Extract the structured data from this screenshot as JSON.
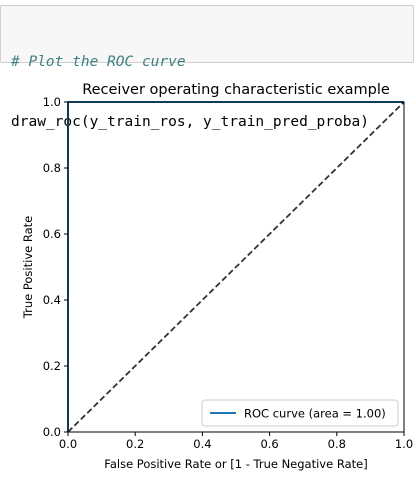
{
  "code_cell": {
    "comment": "# Plot the ROC curve",
    "code": "draw_roc(y_train_ros, y_train_pred_proba)"
  },
  "chart_data": {
    "type": "line",
    "title": "Receiver operating characteristic example",
    "xlabel": "False Positive Rate or [1 - True Negative Rate]",
    "ylabel": "True Positive Rate",
    "xlim": [
      0,
      1
    ],
    "ylim": [
      0,
      1
    ],
    "x_ticks": [
      "0.0",
      "0.2",
      "0.4",
      "0.6",
      "0.8",
      "1.0"
    ],
    "y_ticks": [
      "0.0",
      "0.2",
      "0.4",
      "0.6",
      "0.8",
      "1.0"
    ],
    "grid": false,
    "legend_position": "lower-right",
    "series": [
      {
        "name": "ROC curve (area = 1.00)",
        "color": "#1f77b4",
        "style": "solid",
        "x": [
          0.0,
          0.0,
          1.0
        ],
        "y": [
          0.0,
          1.0,
          1.0
        ]
      },
      {
        "color": "#333333",
        "style": "dashed",
        "x": [
          0.0,
          1.0
        ],
        "y": [
          0.0,
          1.0
        ]
      }
    ]
  }
}
